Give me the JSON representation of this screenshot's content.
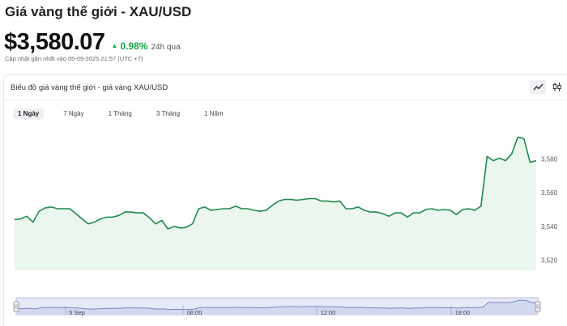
{
  "header": {
    "title": "Giá vàng thế giới - XAU/USD",
    "price": "$3,580.07",
    "change_pct": "0.98%",
    "change_period": "24h qua",
    "updated": "Cập nhật gần nhất vào 05-09-2025 21:57 (UTC +7)"
  },
  "card": {
    "title": "Biểu đồ giá vàng thế giới - giá vàng XAU/USD",
    "view_icons": [
      "line-chart-icon",
      "candlestick-icon"
    ]
  },
  "tabs": [
    {
      "label": "1 Ngày",
      "active": true
    },
    {
      "label": "7 Ngày",
      "active": false
    },
    {
      "label": "1 Tháng",
      "active": false
    },
    {
      "label": "3 Tháng",
      "active": false
    },
    {
      "label": "1 Năm",
      "active": false
    }
  ],
  "colors": {
    "line": "#1f8a4c",
    "area": "#eaf6ee",
    "up": "#16a34a",
    "navigator_fill": "#e6e9f6",
    "navigator_border": "#b7bddc"
  },
  "chart_data": {
    "type": "area",
    "title": "",
    "xlabel": "",
    "ylabel": "",
    "ylim": [
      3514,
      3598
    ],
    "yticks": [
      3520,
      3540,
      3560,
      3580
    ],
    "ytick_labels": [
      "3,520",
      "3,540",
      "3,560",
      "3,580"
    ],
    "y_axis_side": "right",
    "grid": false,
    "series": [
      {
        "values": [
          3544,
          3544.5,
          3546,
          3542.5,
          3549,
          3551,
          3551.5,
          3550.5,
          3550.5,
          3550.5,
          3547.5,
          3544.5,
          3541.5,
          3542.5,
          3544.5,
          3545.5,
          3545.5,
          3546.5,
          3548.5,
          3548.5,
          3548,
          3548,
          3545,
          3541.5,
          3543.5,
          3538.5,
          3540,
          3539,
          3539.5,
          3541.5,
          3550.5,
          3551.5,
          3549.5,
          3550,
          3550.5,
          3550.5,
          3552,
          3550.5,
          3550.5,
          3549.5,
          3549,
          3549.5,
          3552.5,
          3555,
          3556,
          3556,
          3555.5,
          3556,
          3556.5,
          3556.5,
          3555,
          3555,
          3554.5,
          3555,
          3550.5,
          3550.5,
          3551.5,
          3549.5,
          3548.5,
          3548.5,
          3547.5,
          3546,
          3548,
          3548,
          3545.5,
          3548,
          3548,
          3550,
          3550.5,
          3549.5,
          3550,
          3549.5,
          3547,
          3550,
          3550.5,
          3549.5,
          3552,
          3581.5,
          3579,
          3580.5,
          3579,
          3583,
          3593,
          3592,
          3578,
          3579
        ]
      }
    ],
    "navigator_labels": [
      "5 Sep",
      "06:00",
      "12:00",
      "18:00"
    ]
  }
}
